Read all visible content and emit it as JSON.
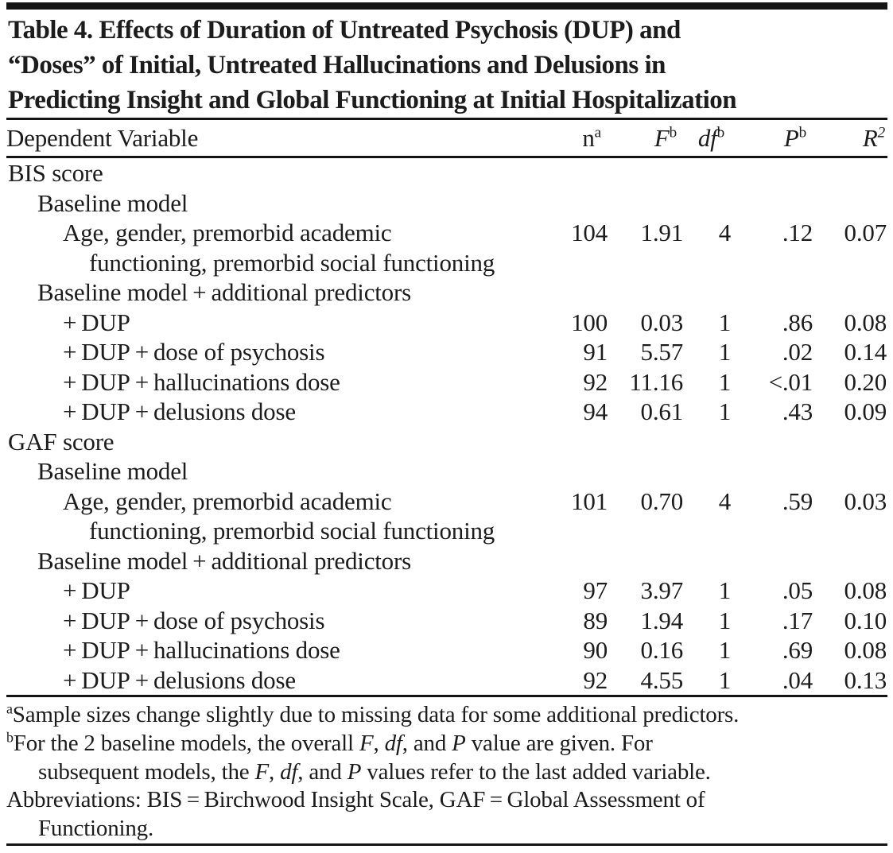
{
  "title": {
    "lines": [
      "Table 4. Effects of Duration of Untreated Psychosis (DUP) and",
      "“Doses” of Initial, Untreated Hallucinations and Delusions in",
      "Predicting Insight and Global Functioning at Initial Hospitalization"
    ]
  },
  "table": {
    "columns": [
      {
        "label": "Dependent Variable",
        "sup": "",
        "italic": false,
        "sup_italic": false
      },
      {
        "label": "n",
        "sup": "a",
        "italic": false,
        "sup_italic": false
      },
      {
        "label": "F",
        "sup": "b",
        "italic": true,
        "sup_italic": false
      },
      {
        "label": "df",
        "sup": "b",
        "italic": true,
        "sup_italic": false
      },
      {
        "label": "P",
        "sup": "b",
        "italic": true,
        "sup_italic": false
      },
      {
        "label": "R",
        "sup": "2",
        "italic": true,
        "sup_italic": true
      }
    ],
    "rows": [
      {
        "label": "BIS score",
        "indent": 0,
        "values": [
          "",
          "",
          "",
          "",
          ""
        ]
      },
      {
        "label": "Baseline model",
        "indent": 1,
        "values": [
          "",
          "",
          "",
          "",
          ""
        ]
      },
      {
        "label": "Age, gender, premorbid academic",
        "indent": 2,
        "values": [
          "104",
          "1.91",
          "4",
          ".12",
          "0.07"
        ]
      },
      {
        "label": "functioning, premorbid social functioning",
        "indent": 3,
        "values": [
          "",
          "",
          "",
          "",
          ""
        ]
      },
      {
        "label": "Baseline model + additional predictors",
        "indent": 1,
        "values": [
          "",
          "",
          "",
          "",
          ""
        ]
      },
      {
        "label": "+ DUP",
        "indent": 2,
        "values": [
          "100",
          "0.03",
          "1",
          ".86",
          "0.08"
        ]
      },
      {
        "label": "+ DUP + dose of psychosis",
        "indent": 2,
        "values": [
          "91",
          "5.57",
          "1",
          ".02",
          "0.14"
        ]
      },
      {
        "label": "+ DUP + hallucinations dose",
        "indent": 2,
        "values": [
          "92",
          "11.16",
          "1",
          "<.01",
          "0.20"
        ]
      },
      {
        "label": "+ DUP + delusions dose",
        "indent": 2,
        "values": [
          "94",
          "0.61",
          "1",
          ".43",
          "0.09"
        ]
      },
      {
        "label": "GAF score",
        "indent": 0,
        "values": [
          "",
          "",
          "",
          "",
          ""
        ]
      },
      {
        "label": "Baseline model",
        "indent": 1,
        "values": [
          "",
          "",
          "",
          "",
          ""
        ]
      },
      {
        "label": "Age, gender, premorbid academic",
        "indent": 2,
        "values": [
          "101",
          "0.70",
          "4",
          ".59",
          "0.03"
        ]
      },
      {
        "label": "functioning, premorbid social functioning",
        "indent": 3,
        "values": [
          "",
          "",
          "",
          "",
          ""
        ]
      },
      {
        "label": "Baseline model + additional predictors",
        "indent": 1,
        "values": [
          "",
          "",
          "",
          "",
          ""
        ]
      },
      {
        "label": "+ DUP",
        "indent": 2,
        "values": [
          "97",
          "3.97",
          "1",
          ".05",
          "0.08"
        ]
      },
      {
        "label": "+ DUP + dose of psychosis",
        "indent": 2,
        "values": [
          "89",
          "1.94",
          "1",
          ".17",
          "0.10"
        ]
      },
      {
        "label": "+ DUP + hallucinations dose",
        "indent": 2,
        "values": [
          "90",
          "0.16",
          "1",
          ".69",
          "0.08"
        ]
      },
      {
        "label": "+ DUP + delusions dose",
        "indent": 2,
        "values": [
          "92",
          "4.55",
          "1",
          ".04",
          "0.13"
        ]
      }
    ]
  },
  "footnotes": {
    "lines": [
      {
        "sup": "a",
        "indent": 0,
        "segments": [
          {
            "text": "Sample sizes change slightly due to missing data for some additional predictors.",
            "italic": false
          }
        ]
      },
      {
        "sup": "b",
        "indent": 0,
        "segments": [
          {
            "text": "For the 2 baseline models, the overall ",
            "italic": false
          },
          {
            "text": "F",
            "italic": true
          },
          {
            "text": ", ",
            "italic": false
          },
          {
            "text": "df",
            "italic": true
          },
          {
            "text": ", and ",
            "italic": false
          },
          {
            "text": "P",
            "italic": true
          },
          {
            "text": " value are given. For",
            "italic": false
          }
        ]
      },
      {
        "sup": "",
        "indent": 1,
        "segments": [
          {
            "text": "subsequent models, the ",
            "italic": false
          },
          {
            "text": "F",
            "italic": true
          },
          {
            "text": ", ",
            "italic": false
          },
          {
            "text": "df",
            "italic": true
          },
          {
            "text": ", and ",
            "italic": false
          },
          {
            "text": "P",
            "italic": true
          },
          {
            "text": " values refer to the last added variable.",
            "italic": false
          }
        ]
      },
      {
        "sup": "",
        "indent": 0,
        "segments": [
          {
            "text": "Abbreviations: BIS = Birchwood Insight Scale, GAF = Global Assessment of",
            "italic": false
          }
        ]
      },
      {
        "sup": "",
        "indent": 1,
        "segments": [
          {
            "text": "Functioning.",
            "italic": false
          }
        ]
      }
    ]
  },
  "colors": {
    "background": "#ffffff",
    "text": "#1c1c1c",
    "rule": "#141414"
  }
}
